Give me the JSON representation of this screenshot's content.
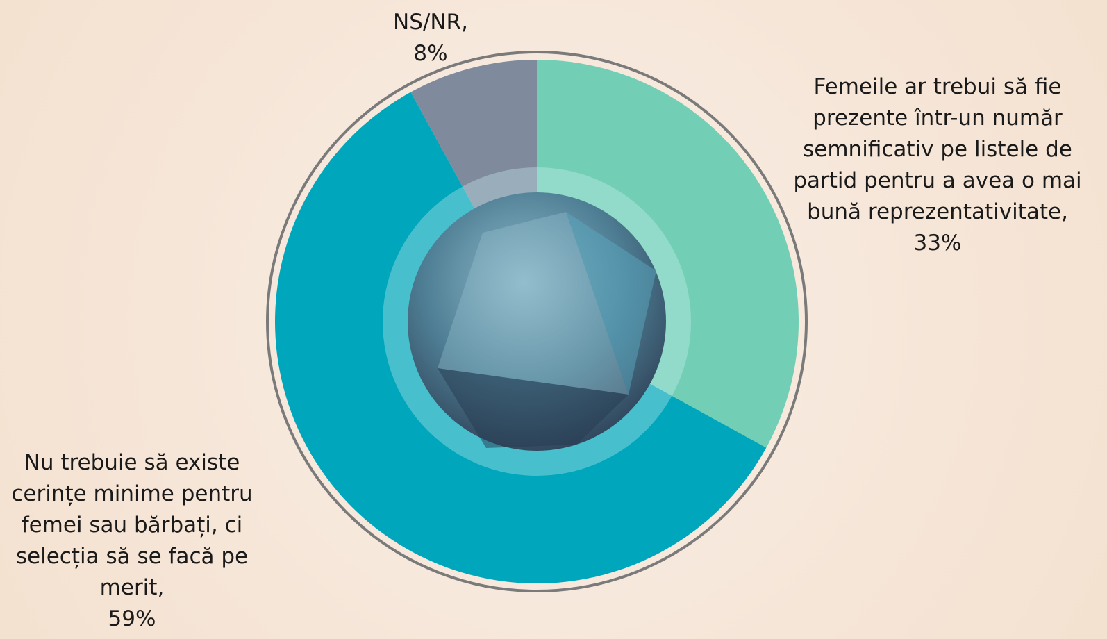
{
  "chart_data": {
    "type": "pie",
    "categories": [
      "Femeile ar trebui să fie prezente într-un număr semnificativ pe listele de partid pentru a avea o mai bună reprezentativitate,",
      "Nu trebuie să existe cerințe minime pentru femei sau bărbați, ci selecția să se facă pe merit,",
      "NS/NR,"
    ],
    "values": [
      33,
      59,
      8
    ],
    "value_labels": [
      "33%",
      "59%",
      "8%"
    ],
    "colors": [
      "#72cfb5",
      "#00a6bb",
      "#7f8b9d"
    ]
  }
}
